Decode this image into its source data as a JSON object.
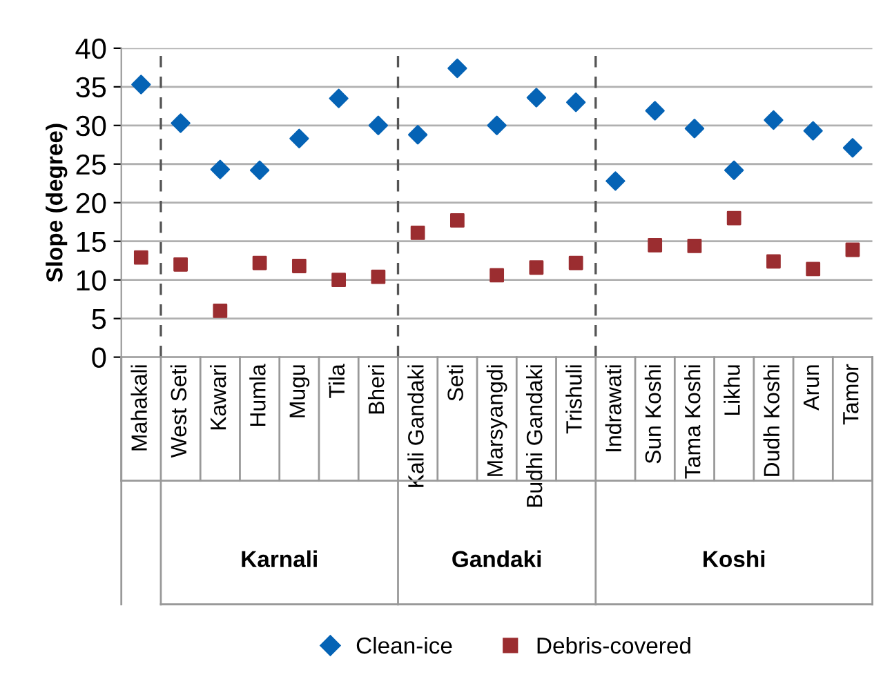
{
  "chart_data": {
    "type": "scatter",
    "ylabel": "Slope (degree)",
    "categories": [
      "Mahakali",
      "West Seti",
      "Kawari",
      "Humla",
      "Mugu",
      "Tila",
      "Bheri",
      "Kali Gandaki",
      "Seti",
      "Marsyangdi",
      "Budhi Gandaki",
      "Trishuli",
      "Indrawati",
      "Sun Koshi",
      "Tama Koshi",
      "Likhu",
      "Dudh Koshi",
      "Arun",
      "Tamor"
    ],
    "series": [
      {
        "name": "Clean-ice",
        "color": "#0563b5",
        "marker": "diamond",
        "values": [
          35.3,
          30.3,
          24.3,
          24.2,
          28.3,
          33.5,
          30.0,
          28.8,
          37.4,
          30.0,
          33.6,
          33.0,
          22.8,
          31.9,
          29.6,
          24.2,
          30.7,
          29.3,
          27.1
        ]
      },
      {
        "name": "Debris-covered",
        "color": "#9b2d30",
        "marker": "square",
        "values": [
          12.9,
          12.0,
          6.0,
          12.2,
          11.8,
          10.0,
          10.4,
          16.1,
          17.7,
          10.6,
          11.6,
          12.2,
          null,
          14.5,
          14.4,
          18.0,
          12.4,
          11.4,
          13.9
        ]
      }
    ],
    "ylim": [
      0,
      40
    ],
    "yticks": [
      0,
      5,
      10,
      15,
      20,
      25,
      30,
      35,
      40
    ],
    "grid": "y",
    "legend": "bottom",
    "annotations": [
      "Karnali",
      "Gandaki",
      "Koshi"
    ]
  }
}
